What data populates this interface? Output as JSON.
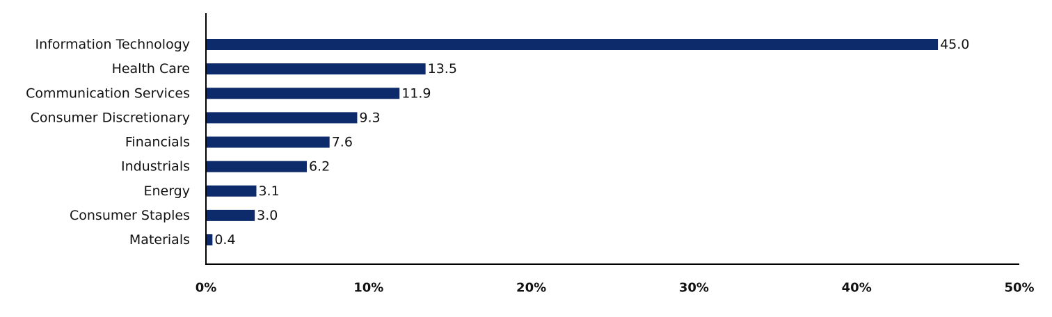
{
  "chart_data": {
    "type": "bar",
    "orientation": "horizontal",
    "categories": [
      "Information Technology",
      "Health Care",
      "Communication Services",
      "Consumer Discretionary",
      "Financials",
      "Industrials",
      "Energy",
      "Consumer Staples",
      "Materials"
    ],
    "values": [
      45.0,
      13.5,
      11.9,
      9.3,
      7.6,
      6.2,
      3.1,
      3.0,
      0.4
    ],
    "value_labels": [
      "45.0",
      "13.5",
      "11.9",
      "9.3",
      "7.6",
      "6.2",
      "3.1",
      "3.0",
      "0.4"
    ],
    "xlim": [
      0,
      50
    ],
    "x_ticks": [
      0,
      10,
      20,
      30,
      40,
      50
    ],
    "x_tick_labels": [
      "0%",
      "10%",
      "20%",
      "30%",
      "40%",
      "50%"
    ],
    "title": "",
    "xlabel": "",
    "ylabel": "",
    "grid": false,
    "legend": "none",
    "bar_color": "#0d2a6b",
    "axis_color": "#000000"
  }
}
